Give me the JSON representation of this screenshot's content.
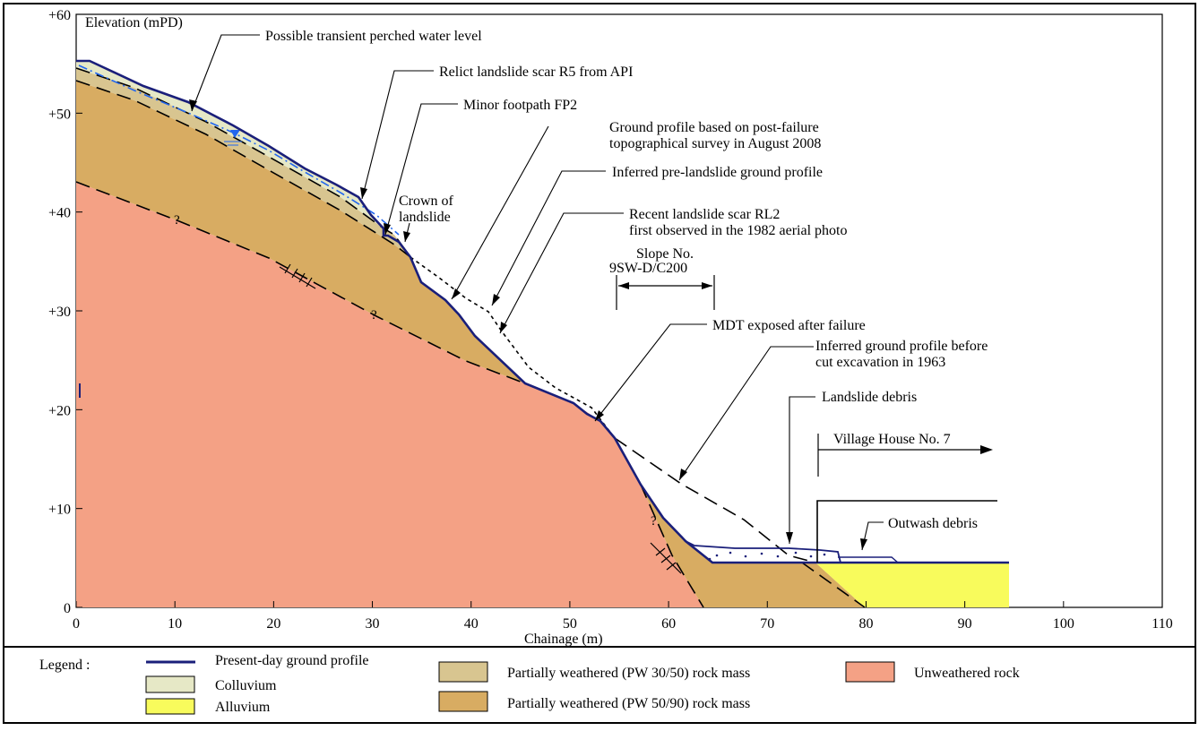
{
  "figure": {
    "y_axis_label": "Elevation (mPD)",
    "x_axis_label": "Chainage (m)",
    "y_ticks": [
      "0",
      "+10",
      "+20",
      "+30",
      "+40",
      "+50",
      "+60"
    ],
    "x_ticks": [
      "0",
      "10",
      "20",
      "30",
      "40",
      "50",
      "60",
      "70",
      "80",
      "90",
      "100",
      "110"
    ],
    "x_range": [
      0,
      110
    ],
    "y_range": [
      0,
      60
    ]
  },
  "annotations": {
    "water_level": "Possible transient perched water level",
    "relict_scar": "Relict landslide scar R5 from API",
    "footpath": "Minor footpath FP2",
    "ground_profile_line1": "Ground profile based on post-failure",
    "ground_profile_line2": "topographical survey in August 2008",
    "pre_landslide": "Inferred pre-landslide ground profile",
    "crown_line1": "Crown of",
    "crown_line2": "landslide",
    "recent_scar_line1": "Recent landslide scar RL2",
    "recent_scar_line2": "first observed in the 1982 aerial photo",
    "slope_no_line1": "Slope No.",
    "slope_no_line2": "9SW-D/C200",
    "mdt": "MDT exposed after failure",
    "cut_profile_line1": "Inferred ground profile before",
    "cut_profile_line2": "cut excavation in 1963",
    "debris": "Landslide debris",
    "village_house": "Village House No. 7",
    "outwash": "Outwash debris",
    "question_mark": "?"
  },
  "legend": {
    "title": "Legend :",
    "items": [
      {
        "label": "Present-day ground profile",
        "color": "#1a1f7a"
      },
      {
        "label": "Colluvium",
        "color": "#e6e8c6"
      },
      {
        "label": "Alluvium",
        "color": "#f8fb5c"
      },
      {
        "label": "Partially weathered (PW 30/50) rock mass",
        "color": "#d8c590"
      },
      {
        "label": "Partially weathered (PW 50/90) rock mass",
        "color": "#d8ac62"
      },
      {
        "label": "Unweathered rock",
        "color": "#f4a185"
      }
    ]
  },
  "colors": {
    "profile": "#1a1f7a",
    "water": "#2266ee",
    "colluvium": "#e6e8c6",
    "pw3050": "#d8c590",
    "pw5090": "#d8ac62",
    "rock": "#f4a185",
    "alluvium": "#f8fb5c"
  }
}
